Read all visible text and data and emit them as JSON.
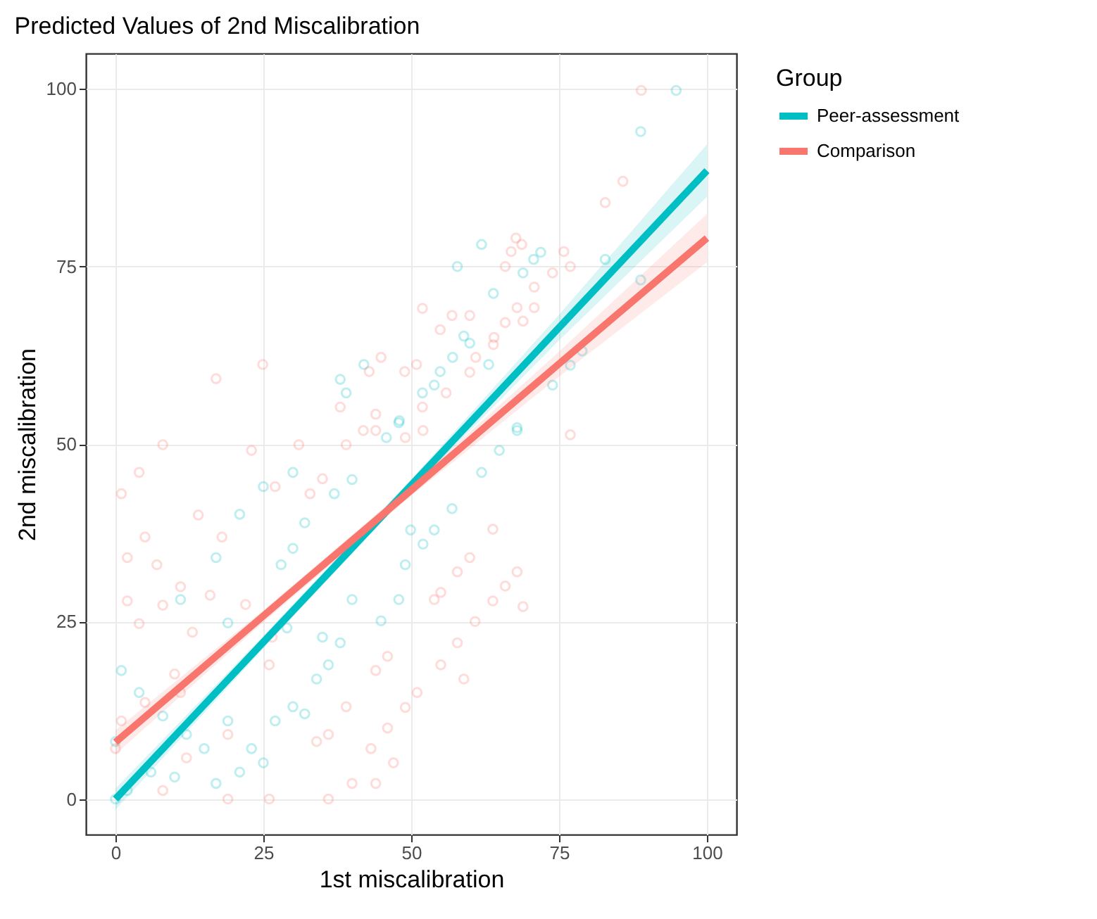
{
  "chart_data": {
    "type": "scatter",
    "title": "Predicted Values of 2nd Miscalibration",
    "xlabel": "1st miscalibration",
    "ylabel": "2nd miscalibration",
    "legend_title": "Group",
    "legend": "right",
    "grid": true,
    "marker": "circle",
    "xlim": [
      -5,
      105
    ],
    "ylim": [
      -5,
      105
    ],
    "xticks": [
      0,
      25,
      50,
      75,
      100
    ],
    "yticks": [
      0,
      25,
      50,
      75,
      100
    ],
    "series": [
      {
        "color": "#00bfc4",
        "x": [
          94.8,
          88.8,
          82.8,
          88.8,
          78.9,
          76.9,
          73.9,
          61.9,
          57.8,
          63.9,
          68.9,
          70.7,
          71.9,
          58.9,
          59.9,
          57,
          63.1,
          54.9,
          53.9,
          51.9,
          42,
          38,
          39,
          48,
          67.9,
          0,
          2,
          0,
          1,
          4,
          8,
          12,
          6,
          17,
          10,
          15,
          19,
          19,
          11,
          17,
          21,
          25,
          30,
          32,
          37,
          40,
          45.8,
          47.9,
          49.9,
          53.9,
          56.9,
          52,
          49,
          47.9,
          44.9,
          40,
          38,
          36,
          34,
          32,
          30,
          27,
          23,
          21,
          25,
          29,
          28,
          30,
          61.9,
          64.9,
          67.9,
          35
        ],
        "values": [
          99.8,
          94,
          76,
          73.1,
          63.1,
          61.1,
          58.3,
          78.1,
          75,
          71.2,
          74.1,
          76,
          77,
          65.2,
          64.2,
          62.2,
          61.2,
          60.2,
          58.3,
          57.2,
          61.2,
          59.1,
          57.2,
          53.3,
          52.3,
          0,
          1.2,
          8.1,
          18.1,
          15,
          11.7,
          9.1,
          3.8,
          2.2,
          3.1,
          7.1,
          11,
          24.8,
          28.1,
          34,
          40.1,
          44,
          46,
          38.9,
          43,
          45,
          50.9,
          53,
          37.9,
          37.9,
          40.9,
          35.9,
          33,
          28.1,
          25.1,
          28.1,
          22,
          18.9,
          16.9,
          12,
          13,
          11,
          7.1,
          3.8,
          5.1,
          24.1,
          33,
          35.3,
          46,
          49.1,
          51.9,
          22.8
        ]
      },
      {
        "color": "#f8766d",
        "x": [
          88.9,
          85.8,
          82.8,
          67.7,
          66.9,
          68.7,
          65.9,
          75.8,
          76.9,
          73.9,
          70.8,
          70.8,
          67.9,
          68.9,
          65.9,
          64,
          63.9,
          60.9,
          59.9,
          56.9,
          51.9,
          54.9,
          50.9,
          48.9,
          42.9,
          44.9,
          24.9,
          17,
          38,
          44,
          51.9,
          55.9,
          59.9,
          76.9,
          1,
          4,
          8,
          23,
          31,
          5,
          14,
          2,
          7,
          2,
          4,
          8,
          11,
          16,
          18,
          27,
          32.9,
          35,
          39,
          41.9,
          44,
          49,
          52,
          63.8,
          59.9,
          57.8,
          55,
          53.9,
          67.9,
          65.9,
          63.8,
          68.9,
          60.8,
          57.8,
          46,
          44,
          55,
          58.9,
          51,
          49,
          46,
          43.2,
          39,
          34,
          36,
          47,
          44,
          40,
          36,
          26,
          19,
          8,
          12,
          19,
          26,
          26.5,
          22,
          13,
          10,
          5,
          1,
          0,
          11
        ],
        "values": [
          99.8,
          87,
          84,
          79,
          77.1,
          78.1,
          75,
          77.1,
          75,
          74.1,
          72.1,
          69.2,
          69.2,
          67.3,
          67.1,
          65,
          64,
          62.2,
          68.1,
          68.1,
          69.1,
          66.1,
          61.2,
          60.2,
          60.2,
          62.2,
          61.2,
          59.2,
          55.2,
          54.2,
          55.2,
          57.2,
          60.1,
          51.3,
          43,
          46,
          49.9,
          49.1,
          49.9,
          36.9,
          40,
          34,
          33,
          27.9,
          24.7,
          27.3,
          29.9,
          28.7,
          36.9,
          44,
          43,
          45.1,
          49.9,
          51.9,
          51.9,
          50.9,
          51.9,
          38,
          34,
          32,
          29.1,
          28.1,
          32,
          30,
          27.9,
          27.1,
          25,
          22,
          20.1,
          18.1,
          18.9,
          16.9,
          15,
          12.9,
          10,
          7.1,
          13,
          8.1,
          9.1,
          5.1,
          2.2,
          2.2,
          0,
          0,
          0,
          1.2,
          5.8,
          9.1,
          18.9,
          22.8,
          27.4,
          23.5,
          17.6,
          13.6,
          11,
          7.1,
          15
        ]
      },
      {
        "type": "line",
        "marker": "none",
        "name": "Peer-assessment",
        "color": "#00bfc4",
        "x": [
          0,
          25,
          50,
          75,
          100
        ],
        "values": [
          0,
          22.1,
          44.2,
          66.4,
          88.5
        ],
        "lower": [
          -1.5,
          21.2,
          43.5,
          64.6,
          84.8
        ],
        "upper": [
          1.5,
          23,
          45,
          68.2,
          92.2
        ]
      },
      {
        "type": "line",
        "marker": "none",
        "name": "Comparison",
        "color": "#f8766d",
        "x": [
          0,
          25,
          50,
          75,
          100
        ],
        "values": [
          8,
          25.8,
          43.5,
          61.3,
          79
        ],
        "lower": [
          6.3,
          24.9,
          42.7,
          59.5,
          75.6
        ],
        "upper": [
          9.7,
          26.6,
          44.3,
          63,
          82.4
        ]
      }
    ]
  }
}
